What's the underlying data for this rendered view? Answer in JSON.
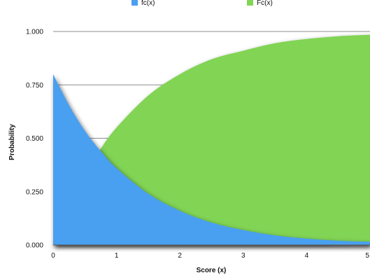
{
  "chart_data": {
    "type": "area",
    "title": "",
    "xlabel": "Score (x)",
    "ylabel": "Probability",
    "xlim": [
      0,
      5
    ],
    "ylim": [
      0,
      1
    ],
    "grid": true,
    "legend_position": "top",
    "x_ticks": [
      "0",
      "1",
      "2",
      "3",
      "4",
      "5"
    ],
    "y_ticks": [
      "0.000",
      "0.250",
      "0.500",
      "0.750",
      "1.000"
    ],
    "x": [
      0,
      0.25,
      0.5,
      0.75,
      1,
      1.5,
      2,
      2.5,
      3,
      3.5,
      4,
      4.5,
      5
    ],
    "series": [
      {
        "name": "fc(x)",
        "color": "#4a9ff0",
        "values": [
          0.8,
          0.655,
          0.535,
          0.44,
          0.36,
          0.24,
          0.16,
          0.105,
          0.07,
          0.045,
          0.03,
          0.02,
          0.015
        ]
      },
      {
        "name": "Fc(x)",
        "color": "#82d455",
        "values": [
          0.0,
          0.18,
          0.33,
          0.45,
          0.55,
          0.7,
          0.8,
          0.87,
          0.91,
          0.945,
          0.965,
          0.978,
          0.985
        ]
      }
    ]
  }
}
